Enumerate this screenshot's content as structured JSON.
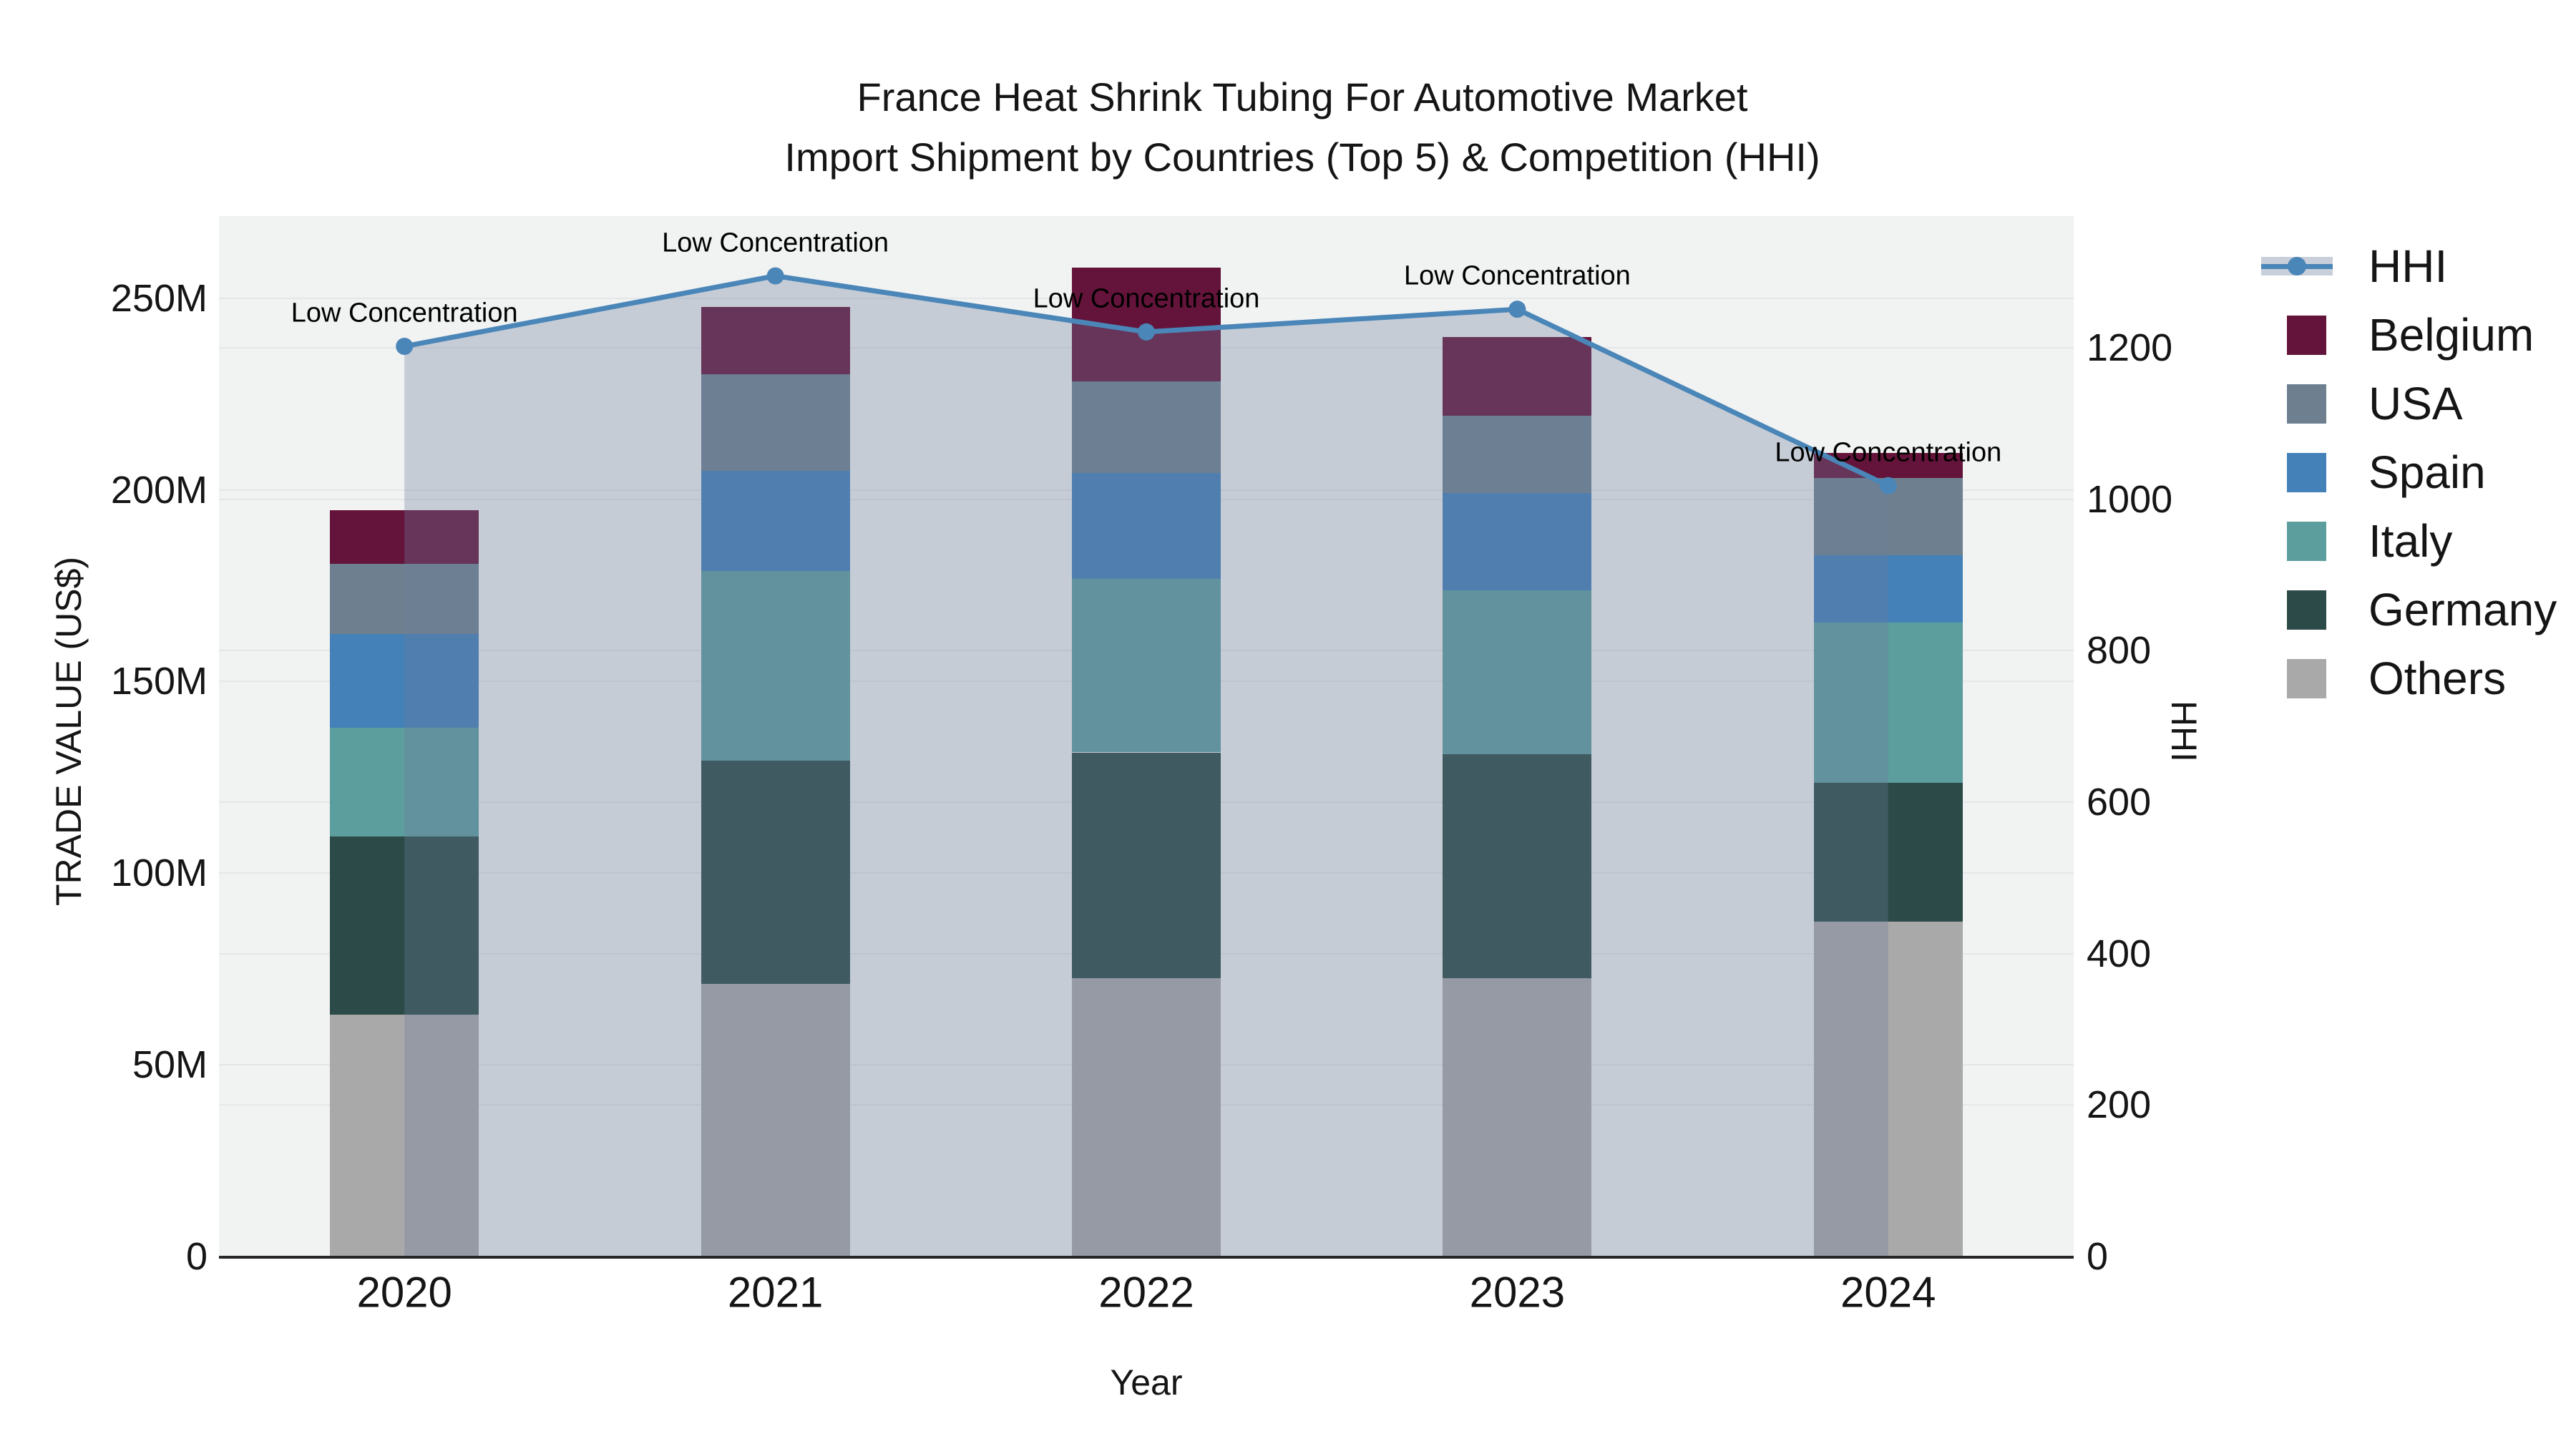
{
  "title": {
    "line1": "France Heat Shrink Tubing For Automotive Market",
    "line2": "Import Shipment by Countries (Top 5) & Competition (HHI)"
  },
  "chart_data": {
    "type": "bar",
    "subtype": "stacked-bar-with-line",
    "categories": [
      "2020",
      "2021",
      "2022",
      "2023",
      "2024"
    ],
    "value_unit": "millions USD",
    "series": [
      {
        "name": "Others",
        "color": "#a9a9a9",
        "values": [
          63.0,
          71.2,
          72.7,
          72.7,
          87.4
        ]
      },
      {
        "name": "Germany",
        "color": "#2c4a47",
        "values": [
          46.5,
          58.1,
          58.8,
          58.4,
          36.2
        ]
      },
      {
        "name": "Italy",
        "color": "#5c9d9e",
        "values": [
          28.4,
          49.6,
          45.3,
          42.6,
          41.7
        ]
      },
      {
        "name": "Spain",
        "color": "#4381b8",
        "values": [
          24.5,
          26.0,
          27.5,
          25.5,
          17.7
        ]
      },
      {
        "name": "USA",
        "color": "#6e8090",
        "values": [
          18.3,
          25.2,
          23.9,
          20.1,
          20.0
        ]
      },
      {
        "name": "Belgium",
        "color": "#64143a",
        "values": [
          14.0,
          17.6,
          29.8,
          20.6,
          6.6
        ]
      }
    ],
    "line_series": {
      "name": "HHI",
      "color": "#4a86b8",
      "area_fill": "rgba(110,125,155,0.32)",
      "values": [
        1202,
        1295,
        1221,
        1251,
        1018
      ]
    },
    "bar_totals": [
      194.7,
      247.7,
      258.0,
      239.9,
      209.6
    ],
    "annotations": [
      {
        "category": "2020",
        "text": "Low Concentration"
      },
      {
        "category": "2021",
        "text": "Low Concentration"
      },
      {
        "category": "2022",
        "text": "Low Concentration"
      },
      {
        "category": "2023",
        "text": "Low Concentration"
      },
      {
        "category": "2024",
        "text": "Low Concentration"
      }
    ],
    "y_left": {
      "title": "TRADE VALUE (US$)",
      "tick_labels": [
        "0",
        "50M",
        "100M",
        "150M",
        "200M",
        "250M"
      ],
      "tick_values": [
        0,
        50,
        100,
        150,
        200,
        250
      ],
      "max": 271.4
    },
    "y_right": {
      "title": "HHI",
      "tick_labels": [
        "0",
        "200",
        "400",
        "600",
        "800",
        "1000",
        "1200"
      ],
      "tick_values": [
        0,
        200,
        400,
        600,
        800,
        1000,
        1200
      ],
      "max": 1374
    },
    "x_axis": {
      "title": "Year"
    },
    "grid": true,
    "legend_position": "right"
  },
  "legend": {
    "items": [
      {
        "label": "HHI",
        "type": "line",
        "color": "#4a86b8"
      },
      {
        "label": "Belgium",
        "type": "swatch",
        "color": "#64143a"
      },
      {
        "label": "USA",
        "type": "swatch",
        "color": "#6e8090"
      },
      {
        "label": "Spain",
        "type": "swatch",
        "color": "#4381b8"
      },
      {
        "label": "Italy",
        "type": "swatch",
        "color": "#5c9d9e"
      },
      {
        "label": "Germany",
        "type": "swatch",
        "color": "#2c4a47"
      },
      {
        "label": "Others",
        "type": "swatch",
        "color": "#a9a9a9"
      }
    ]
  },
  "colors": {
    "plot_background": "#f1f2f2",
    "figure_background": "#ffffff",
    "gridline": "#e4e6e8",
    "axis_line": "#262626",
    "text": "#151515"
  }
}
